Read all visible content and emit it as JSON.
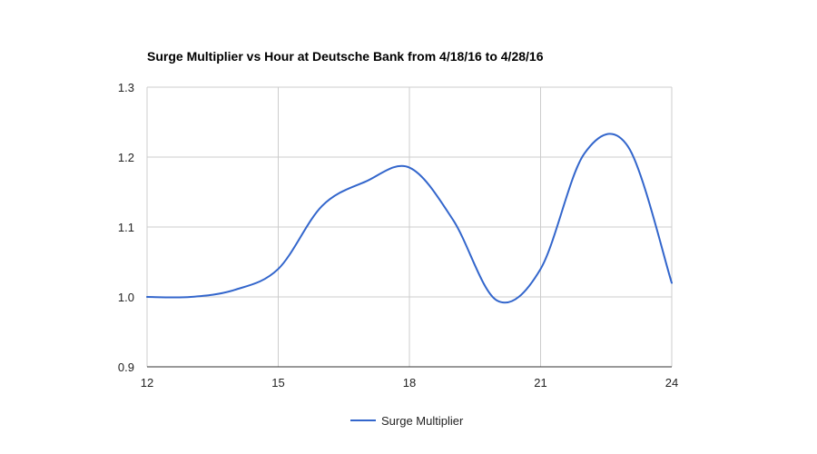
{
  "chart_data": {
    "type": "line",
    "title": "Surge Multiplier vs Hour at Deutsche Bank from 4/18/16 to 4/28/16",
    "xlabel": "",
    "ylabel": "",
    "xlim": [
      12,
      24
    ],
    "ylim": [
      0.9,
      1.3
    ],
    "x_ticks": [
      "12",
      "15",
      "18",
      "21",
      "24"
    ],
    "y_ticks": [
      "0.9",
      "1.0",
      "1.1",
      "1.2",
      "1.3"
    ],
    "grid": true,
    "legend_position": "bottom",
    "series": [
      {
        "name": "Surge Multiplier",
        "color": "#3366cc",
        "x": [
          12,
          13,
          14,
          15,
          16,
          17,
          18,
          19,
          20,
          21,
          22,
          23,
          24
        ],
        "y": [
          1.0,
          1.0,
          1.01,
          1.04,
          1.13,
          1.165,
          1.185,
          1.11,
          0.995,
          1.04,
          1.205,
          1.215,
          1.02
        ]
      }
    ]
  }
}
